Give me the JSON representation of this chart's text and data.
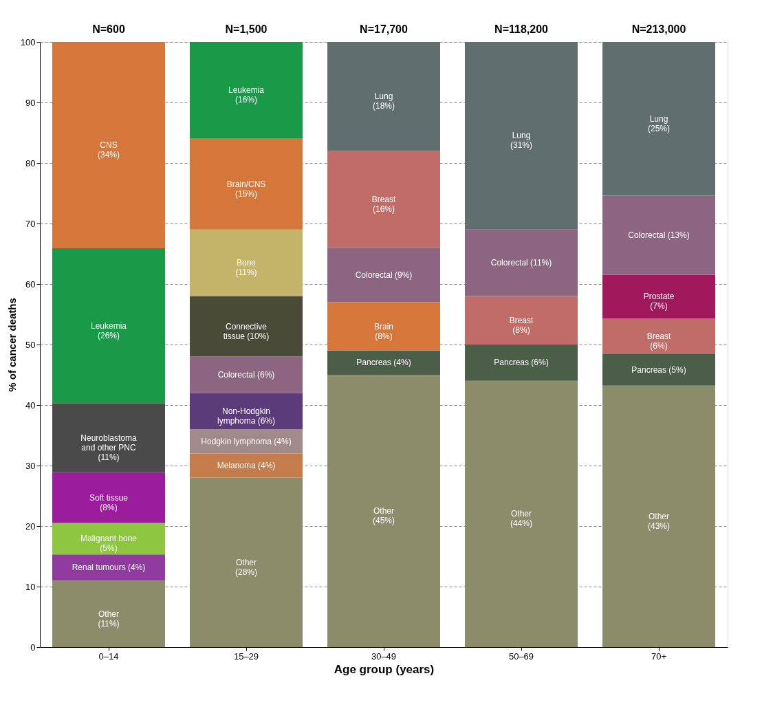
{
  "chart_data": {
    "type": "bar",
    "stacked": true,
    "xlabel": "Age group (years)",
    "ylabel": "% of cancer deaths",
    "categories": [
      "0–14",
      "15–29",
      "30–49",
      "50–69",
      "70+"
    ],
    "ylim": [
      0,
      100
    ],
    "yticks": [
      0,
      10,
      20,
      30,
      40,
      50,
      60,
      70,
      80,
      90,
      100
    ],
    "grid": "y",
    "series": [
      {
        "values": [
          11.0,
          28,
          45,
          44,
          43.2
        ],
        "colors": [
          "#8a8c6a",
          "#8a8c6a",
          "#8a8c6a",
          "#8a8c6a",
          "#8a8c6a"
        ],
        "value_labels": [
          "Other\n(11%)",
          "Other\n(28%)",
          "Other\n(45%)",
          "Other\n(44%)",
          "Other\n(43%)"
        ]
      },
      {
        "values": [
          4.3,
          4,
          4,
          6,
          5.3
        ],
        "colors": [
          "#8e3a9e",
          "#c47c4b",
          "#4a5e48",
          "#4a5e48",
          "#4a5e48"
        ],
        "value_labels": [
          "Renal tumours (4%)",
          "Melanoma (4%)",
          "Pancreas (4%)",
          "Pancreas (6%)",
          "Pancreas (5%)"
        ]
      },
      {
        "values": [
          5.2,
          4,
          8,
          8,
          5.8
        ],
        "colors": [
          "#8dc63f",
          "#a08a8a",
          "#d5763b",
          "#c06d6a",
          "#c06d6a"
        ],
        "value_labels": [
          "Malignant bone\n(5%)",
          "Hodgkin lymphoma (4%)",
          "Brain\n(8%)",
          "Breast\n(8%)",
          "Breast\n(6%)"
        ]
      },
      {
        "values": [
          8.4,
          6,
          9,
          11,
          7.2
        ],
        "colors": [
          "#9b1d9b",
          "#5b3b7a",
          "#8c6680",
          "#8c6680",
          "#a0195c"
        ],
        "value_labels": [
          "Soft tissue\n(8%)",
          "Non-Hodgkin\nlymphoma (6%)",
          "Colorectal (9%)",
          "Colorectal (11%)",
          "Prostate\n(7%)"
        ]
      },
      {
        "values": [
          11.4,
          6,
          16,
          31,
          13.1
        ],
        "colors": [
          "#4a4a4a",
          "#8c6680",
          "#c06d6a",
          "#616e6e",
          "#8c6680"
        ],
        "value_labels": [
          "Neuroblastoma\nand other PNC\n(11%)",
          "Colorectal (6%)",
          "Breast\n(16%)",
          "Lung\n(31%)",
          "Colorectal (13%)"
        ]
      },
      {
        "values": [
          25.6,
          10,
          18,
          null,
          25.4
        ],
        "colors": [
          "#1a9a48",
          "#4a4a38",
          "#616e6e",
          null,
          "#616e6e"
        ],
        "value_labels": [
          "Leukemia\n(26%)",
          "Connective\ntissue (10%)",
          "Lung\n(18%)",
          null,
          "Lung\n(25%)"
        ]
      },
      {
        "values": [
          34.1,
          11,
          null,
          null,
          null
        ],
        "colors": [
          "#d5763b",
          "#c4b46a",
          null,
          null,
          null
        ],
        "value_labels": [
          "CNS\n(34%)",
          "Bone\n(11%)",
          null,
          null,
          null
        ]
      },
      {
        "values": [
          null,
          15,
          null,
          null,
          null
        ],
        "colors": [
          null,
          "#d5763b",
          null,
          null,
          null
        ],
        "value_labels": [
          null,
          "Brain/CNS\n(15%)",
          null,
          null,
          null
        ]
      },
      {
        "values": [
          null,
          16,
          null,
          null,
          null
        ],
        "colors": [
          null,
          "#1a9a48",
          null,
          null,
          null
        ],
        "value_labels": [
          null,
          "Leukemia\n(16%)",
          null,
          null,
          null
        ]
      }
    ],
    "annotations": [
      "N=600",
      "N=1,500",
      "N=17,700",
      "N=118,200",
      "N=213,000"
    ]
  }
}
